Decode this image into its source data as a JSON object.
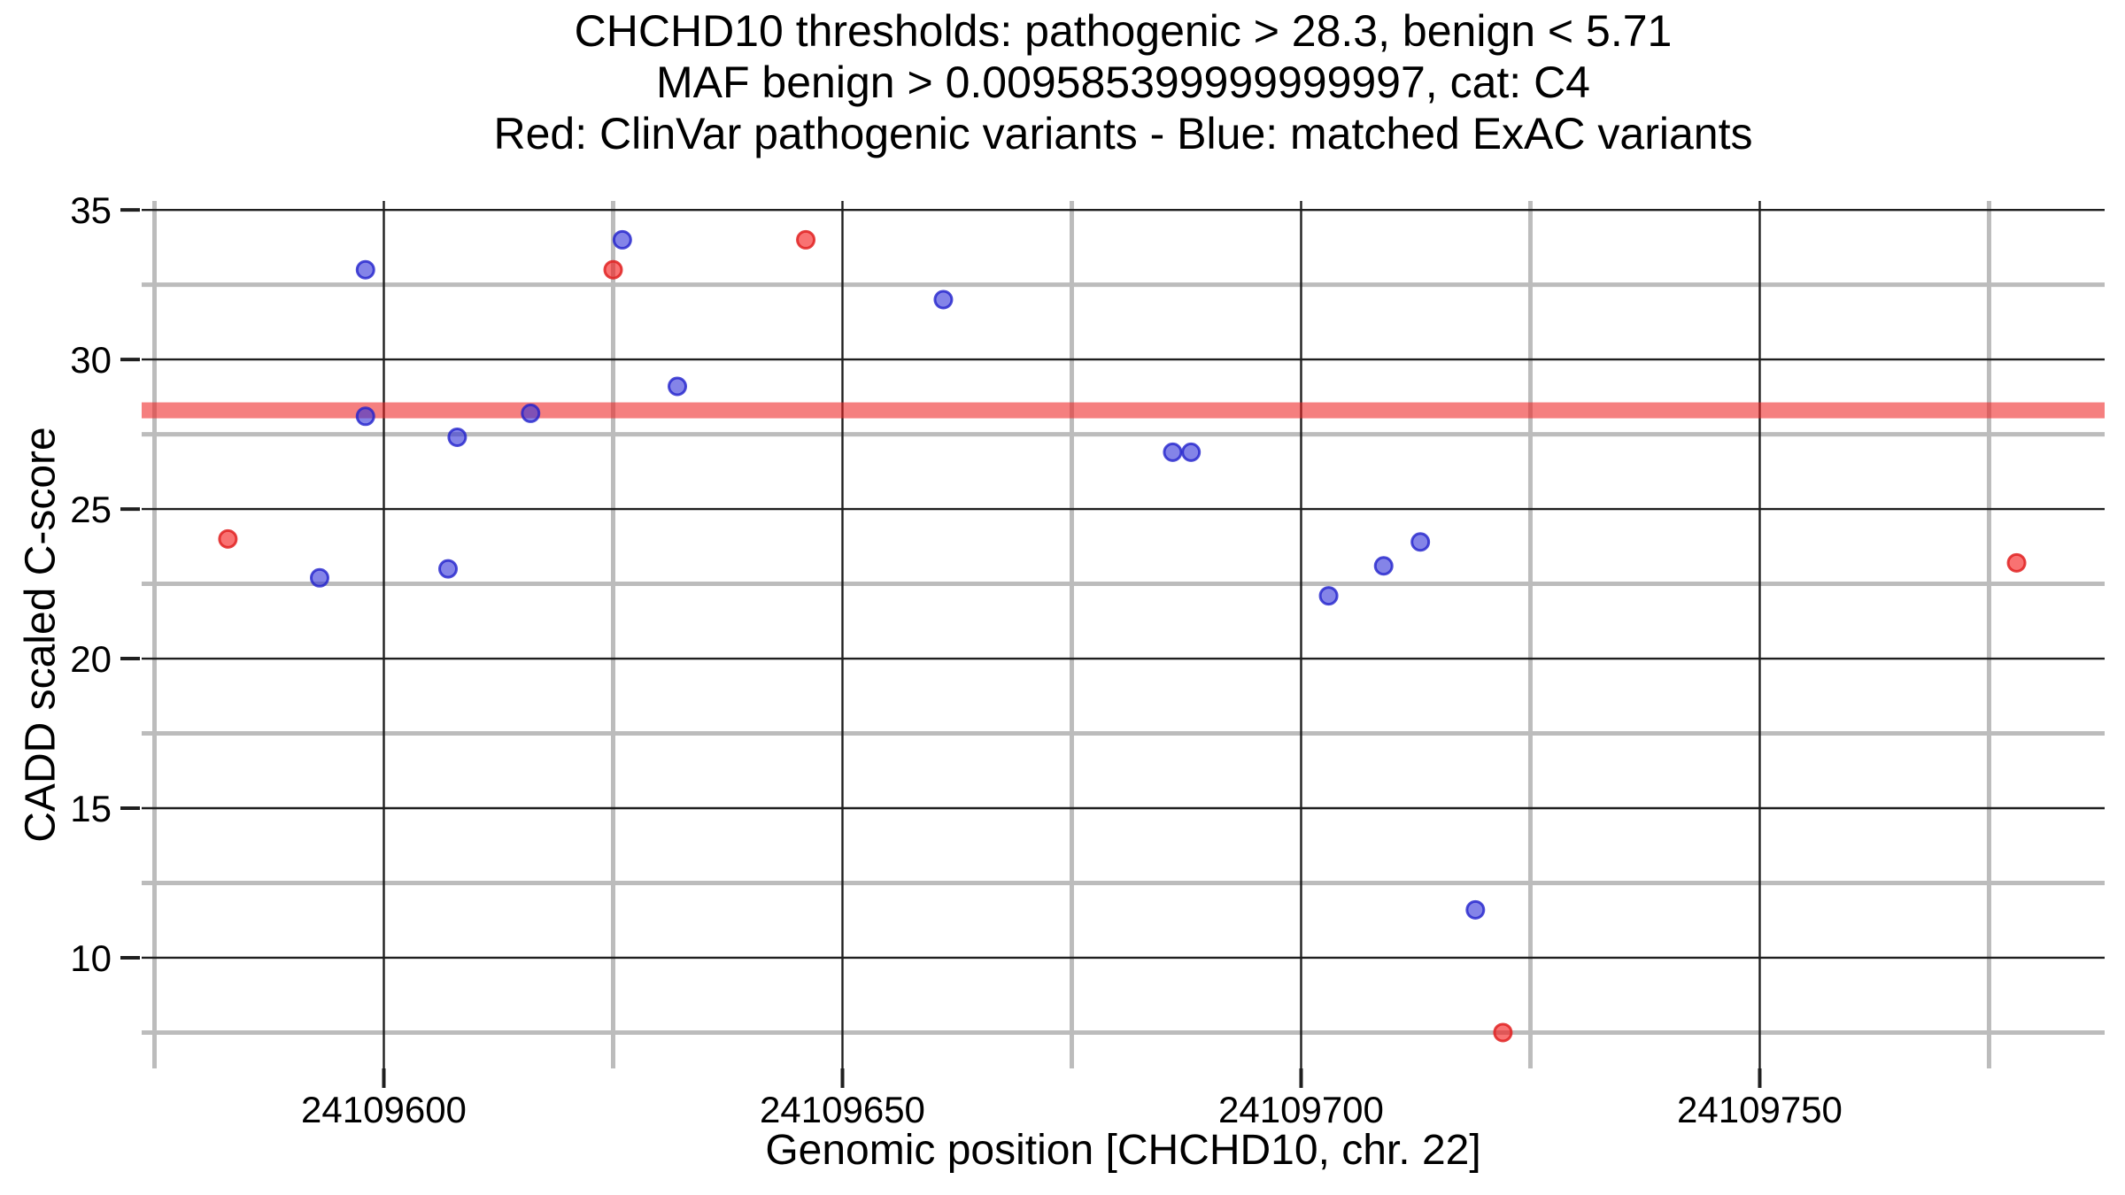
{
  "title_lines": [
    "CHCHD10 thresholds: pathogenic > 28.3, benign < 5.71",
    "MAF benign > 0.009585399999999997, cat: C4",
    "Red: ClinVar pathogenic variants - Blue: matched ExAC variants"
  ],
  "colors": {
    "background": "#ffffff",
    "grid_major": "#1f1f1f",
    "grid_minor": "#bcbcbc",
    "tick_mark": "#1f1f1f",
    "threshold_band": "#ee2222",
    "clinvar_red_fill": "#f51414",
    "clinvar_red_stroke": "#e02222",
    "exac_blue_fill": "#3232d8",
    "exac_blue_stroke": "#2222cc"
  },
  "chart_data": {
    "type": "scatter",
    "title": "CHCHD10 thresholds: pathogenic > 28.3, benign < 5.71 | MAF benign > 0.009585399999999997, cat: C4 | Red: ClinVar pathogenic variants - Blue: matched ExAC variants",
    "xlabel": "Genomic position [CHCHD10, chr. 22]",
    "ylabel": "CADD scaled C-score",
    "gene": "CHCHD10",
    "chromosome": "chr. 22",
    "category": "C4",
    "threshold_pathogenic": 28.3,
    "threshold_benign": 5.71,
    "maf_benign": 0.009585399999999997,
    "xlim": [
      24109573.6,
      24109787.6
    ],
    "ylim": [
      6.3,
      35.3
    ],
    "grid": true,
    "legend_position": "none",
    "x_ticks": [
      {
        "value": 24109600,
        "label": "24109600"
      },
      {
        "value": 24109650,
        "label": "24109650"
      },
      {
        "value": 24109700,
        "label": "24109700"
      },
      {
        "value": 24109750,
        "label": "24109750"
      }
    ],
    "y_ticks": [
      {
        "value": 10,
        "label": "10"
      },
      {
        "value": 15,
        "label": "15"
      },
      {
        "value": 20,
        "label": "20"
      },
      {
        "value": 25,
        "label": "25"
      },
      {
        "value": 30,
        "label": "30"
      },
      {
        "value": 35,
        "label": "35"
      }
    ],
    "x_minor_ticks": [
      24109575,
      24109625,
      24109675,
      24109725,
      24109775
    ],
    "y_minor_ticks": [
      7.5,
      12.5,
      17.5,
      22.5,
      27.5,
      32.5
    ],
    "series": [
      {
        "name": "ClinVar pathogenic variants",
        "color_key": "red",
        "fill": "#f51414",
        "fill_opacity": 0.6,
        "stroke": "#e02222",
        "stroke_opacity": 0.85,
        "point_name": "clinvar-pathogenic-point",
        "points": [
          [
            24109583,
            24.0
          ],
          [
            24109625,
            33.0
          ],
          [
            24109646,
            34.0
          ],
          [
            24109722,
            7.5
          ],
          [
            24109778,
            23.2
          ]
        ]
      },
      {
        "name": "matched ExAC variants",
        "color_key": "blue",
        "fill": "#3232d8",
        "fill_opacity": 0.6,
        "stroke": "#2222cc",
        "stroke_opacity": 0.8,
        "point_name": "exac-matched-point",
        "points": [
          [
            24109593,
            22.7
          ],
          [
            24109598,
            33.0
          ],
          [
            24109598,
            28.1
          ],
          [
            24109607,
            23.0
          ],
          [
            24109608,
            27.4
          ],
          [
            24109616,
            28.2
          ],
          [
            24109626,
            34.0
          ],
          [
            24109632,
            29.1
          ],
          [
            24109661,
            32.0
          ],
          [
            24109686,
            26.9
          ],
          [
            24109688,
            26.9
          ],
          [
            24109703,
            22.1
          ],
          [
            24109709,
            23.1
          ],
          [
            24109713,
            23.9
          ],
          [
            24109719,
            11.6
          ]
        ]
      }
    ]
  }
}
